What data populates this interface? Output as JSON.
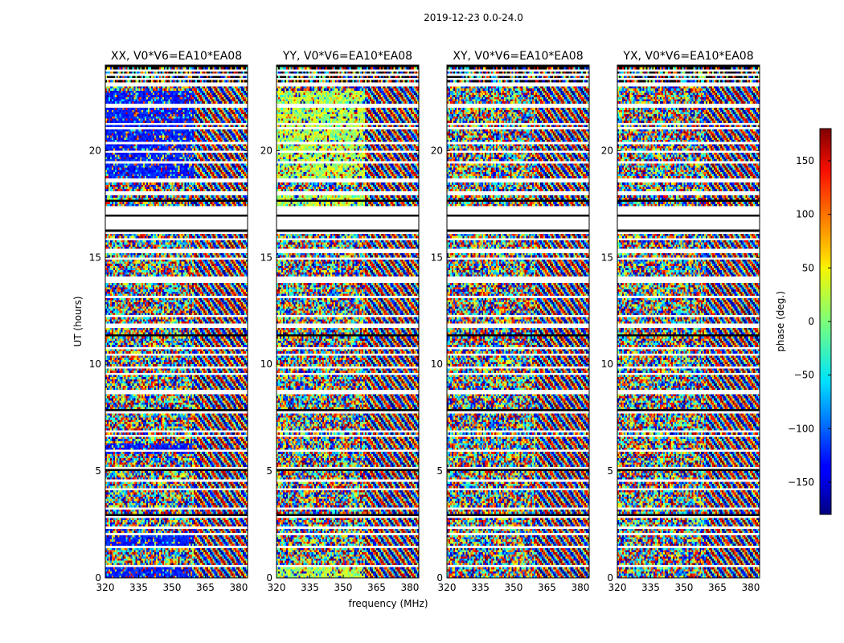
{
  "figure_title": "2019-12-23 0.0-24.0",
  "chart_data": {
    "type": "heatmap",
    "title": "2019-12-23 0.0-24.0",
    "xlabel": "frequency (MHz)",
    "ylabel": "UT (hours)",
    "xlim": [
      320,
      384
    ],
    "ylim": [
      0,
      24
    ],
    "x_ticks": [
      320,
      335,
      350,
      365,
      380
    ],
    "y_ticks": [
      0,
      5,
      10,
      15,
      20
    ],
    "colormap": "jet",
    "colorbar": {
      "label": "phase (deg.)",
      "range": [
        -180,
        180
      ],
      "ticks": [
        150,
        100,
        50,
        0,
        -50,
        -100,
        -150
      ]
    },
    "flagged_time_ranges_hours": [
      [
        0.55,
        0.62
      ],
      [
        1.45,
        1.52
      ],
      [
        2.05,
        2.1
      ],
      [
        2.8,
        2.95
      ],
      [
        3.8,
        3.85
      ],
      [
        4.55,
        4.6
      ],
      [
        5.1,
        5.15
      ],
      [
        6.6,
        6.7
      ],
      [
        7.65,
        7.95
      ],
      [
        8.7,
        8.75
      ],
      [
        9.8,
        9.85
      ],
      [
        10.65,
        10.75
      ],
      [
        11.75,
        11.9
      ],
      [
        13.8,
        14.0
      ],
      [
        15.25,
        15.35
      ],
      [
        16.15,
        16.2
      ],
      [
        17.05,
        17.45
      ],
      [
        17.95,
        18.05
      ],
      [
        18.55,
        18.65
      ],
      [
        19.45,
        19.5
      ],
      [
        19.9,
        20.0
      ],
      [
        21.0,
        21.05
      ],
      [
        22.05,
        22.15
      ],
      [
        23.05,
        23.1
      ]
    ],
    "panels": [
      {
        "name": "XX",
        "title": "XX, V0*V6=EA10*EA08",
        "variant": "xx"
      },
      {
        "name": "YY",
        "title": "YY, V0*V6=EA10*EA08",
        "variant": "yy"
      },
      {
        "name": "XY",
        "title": "XY, V0*V6=EA10*EA08",
        "variant": "xy"
      },
      {
        "name": "YX",
        "title": "YX, V0*V6=EA10*EA08",
        "variant": "yx"
      }
    ]
  }
}
